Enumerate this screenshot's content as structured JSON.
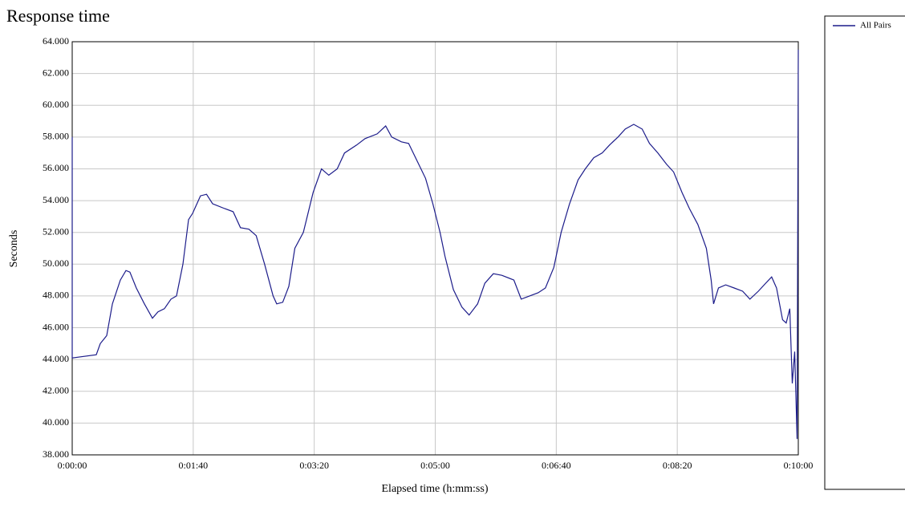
{
  "chart_data": {
    "type": "line",
    "title": "Response time",
    "xlabel": "Elapsed time (h:mm:ss)",
    "ylabel": "Seconds",
    "x": [
      0,
      0,
      19.9,
      23.2,
      28.5,
      33.2,
      39.8,
      44.4,
      47.7,
      53,
      59.7,
      66.3,
      70.9,
      76.2,
      81.6,
      86.2,
      91.5,
      96.1,
      99.5,
      106,
      111,
      116,
      126,
      133,
      139,
      146,
      152,
      159,
      166,
      169,
      174,
      179,
      184,
      191,
      199,
      206,
      212,
      219,
      225,
      235,
      242,
      252,
      259,
      264,
      272,
      278,
      285,
      292,
      298,
      304,
      308,
      315,
      322,
      328,
      335,
      341,
      348,
      355,
      365,
      371,
      378,
      385,
      391,
      398,
      404,
      411,
      418,
      424,
      431,
      438,
      444,
      451,
      457,
      464,
      471,
      477,
      484,
      491,
      497,
      504,
      510,
      517,
      524,
      528,
      530,
      534,
      540,
      547,
      554,
      560,
      567,
      573,
      578,
      582,
      587,
      590,
      593,
      595,
      597,
      599,
      600
    ],
    "series": [
      {
        "name": "All Pairs",
        "color": "#1c1c8a",
        "values": [
          58,
          44.1,
          44.3,
          45,
          45.5,
          47.5,
          49,
          49.6,
          49.5,
          48.5,
          47.5,
          46.6,
          47,
          47.2,
          47.8,
          48,
          50,
          52.8,
          53.2,
          54.3,
          54.4,
          53.8,
          53.5,
          53.3,
          52.3,
          52.2,
          51.8,
          50,
          48,
          47.5,
          47.6,
          48.6,
          51,
          52,
          54.5,
          56,
          55.6,
          56,
          57,
          57.5,
          57.9,
          58.2,
          58.7,
          58,
          57.7,
          57.6,
          56.5,
          55.4,
          53.8,
          52,
          50.5,
          48.4,
          47.3,
          46.8,
          47.5,
          48.8,
          49.4,
          49.3,
          49,
          47.8,
          48,
          48.2,
          48.5,
          49.8,
          52,
          53.8,
          55.3,
          56,
          56.7,
          57,
          57.5,
          58,
          58.5,
          58.8,
          58.5,
          57.6,
          57,
          56.3,
          55.8,
          54.5,
          53.5,
          52.5,
          51,
          49,
          47.5,
          48.5,
          48.7,
          48.5,
          48.3,
          47.8,
          48.3,
          48.8,
          49.2,
          48.5,
          46.5,
          46.3,
          47.2,
          42.5,
          44.5,
          39,
          63.5
        ]
      }
    ],
    "xlim": [
      0,
      600
    ],
    "xticks": [
      {
        "value": 0,
        "label": "0:00:00"
      },
      {
        "value": 100,
        "label": "0:01:40"
      },
      {
        "value": 200,
        "label": "0:03:20"
      },
      {
        "value": 300,
        "label": "0:05:00"
      },
      {
        "value": 400,
        "label": "0:06:40"
      },
      {
        "value": 500,
        "label": "0:08:20"
      },
      {
        "value": 600,
        "label": "0:10:00"
      }
    ],
    "ylim": [
      38,
      64
    ],
    "yticks": [
      {
        "value": 38,
        "label": "38.000"
      },
      {
        "value": 40,
        "label": "40.000"
      },
      {
        "value": 42,
        "label": "42.000"
      },
      {
        "value": 44,
        "label": "44.000"
      },
      {
        "value": 46,
        "label": "46.000"
      },
      {
        "value": 48,
        "label": "48.000"
      },
      {
        "value": 50,
        "label": "50.000"
      },
      {
        "value": 52,
        "label": "52.000"
      },
      {
        "value": 54,
        "label": "54.000"
      },
      {
        "value": 56,
        "label": "56.000"
      },
      {
        "value": 58,
        "label": "58.000"
      },
      {
        "value": 60,
        "label": "60.000"
      },
      {
        "value": 62,
        "label": "62.000"
      },
      {
        "value": 64,
        "label": "64.000"
      }
    ],
    "grid": true
  }
}
